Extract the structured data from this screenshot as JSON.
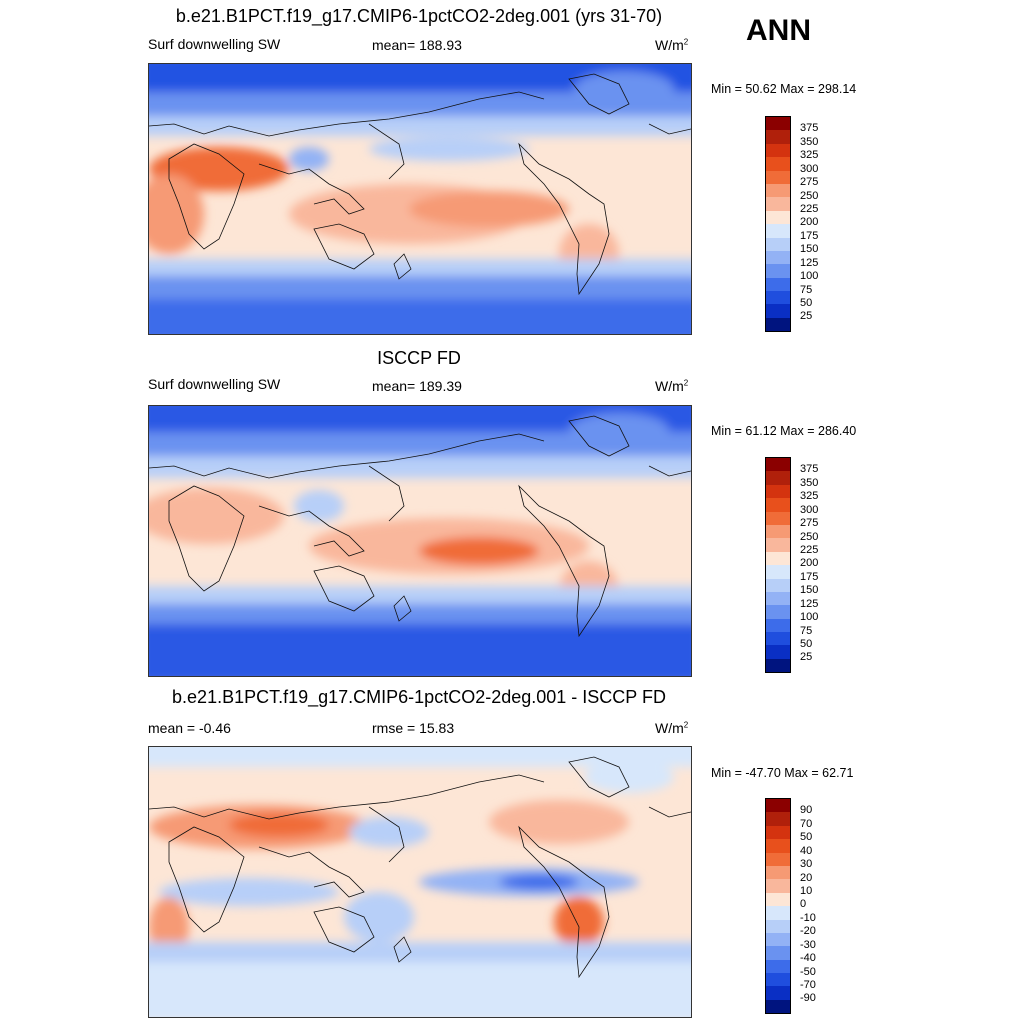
{
  "season": "ANN",
  "panels": [
    {
      "title": "b.e21.B1PCT.f19_g17.CMIP6-1pctCO2-2deg.001 (yrs 31-70)",
      "left_label": "Surf downwelling SW",
      "center_label": "mean= 188.93",
      "units": "W/m",
      "units_sup": "2",
      "minmax": "Min =  50.62 Max = 298.14",
      "colorbar_labels": [
        "375",
        "350",
        "325",
        "300",
        "275",
        "250",
        "225",
        "200",
        "175",
        "150",
        "125",
        "100",
        "75",
        "50",
        "25"
      ]
    },
    {
      "title": "ISCCP FD",
      "left_label": "Surf downwelling SW",
      "center_label": "mean= 189.39",
      "units": "W/m",
      "units_sup": "2",
      "minmax": "Min =  61.12 Max = 286.40",
      "colorbar_labels": [
        "375",
        "350",
        "325",
        "300",
        "275",
        "250",
        "225",
        "200",
        "175",
        "150",
        "125",
        "100",
        "75",
        "50",
        "25"
      ]
    },
    {
      "title": "b.e21.B1PCT.f19_g17.CMIP6-1pctCO2-2deg.001 - ISCCP FD",
      "left_label": "mean =  -0.46",
      "center_label": "rmse =  15.83",
      "units": "W/m",
      "units_sup": "2",
      "minmax": "Min = -47.70 Max =  62.71",
      "colorbar_labels": [
        "90",
        "70",
        "50",
        "40",
        "30",
        "20",
        "10",
        "0",
        "-10",
        "-20",
        "-30",
        "-40",
        "-50",
        "-70",
        "-90"
      ]
    }
  ],
  "colors": {
    "scale": [
      "#8b0000",
      "#b0200b",
      "#d4330f",
      "#e8501c",
      "#f06c38",
      "#f69a74",
      "#f9b79c",
      "#fde6d6",
      "#d7e7fb",
      "#b7cff8",
      "#93b2f5",
      "#6a92f0",
      "#3d6cea",
      "#1f4ede",
      "#0a2fc4",
      "#00147f"
    ]
  }
}
